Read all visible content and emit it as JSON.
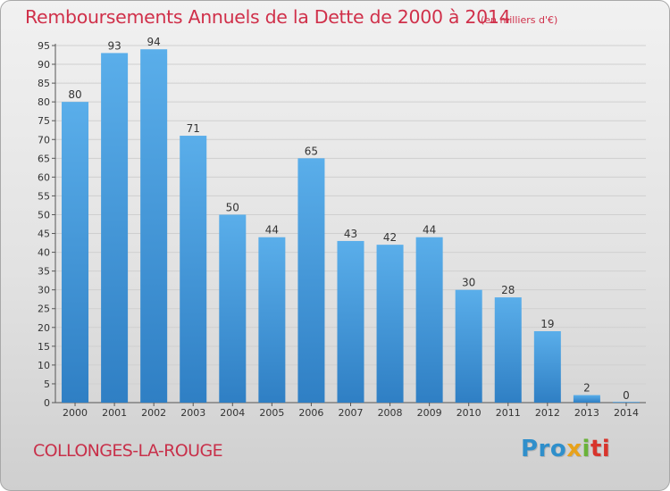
{
  "chart_data": {
    "type": "bar",
    "title": "Remboursements Annuels de la Dette de 2000 à 2014",
    "unit_note": "(en milliers d'€)",
    "categories": [
      "2000",
      "2001",
      "2002",
      "2003",
      "2004",
      "2005",
      "2006",
      "2007",
      "2008",
      "2009",
      "2010",
      "2011",
      "2012",
      "2013",
      "2014"
    ],
    "values": [
      80,
      93,
      94,
      71,
      50,
      44,
      65,
      43,
      42,
      44,
      30,
      28,
      19,
      2,
      0
    ],
    "ylim": [
      0,
      95
    ],
    "yticks": [
      0,
      5,
      10,
      15,
      20,
      25,
      30,
      35,
      40,
      45,
      50,
      55,
      60,
      65,
      70,
      75,
      80,
      85,
      90,
      95
    ],
    "grid": true,
    "bar_color": "#4aa0de"
  },
  "footer": {
    "commune": "COLLONGES-LA-ROUGE",
    "brand_parts": [
      "Pro",
      "x",
      "i",
      "ti"
    ]
  }
}
